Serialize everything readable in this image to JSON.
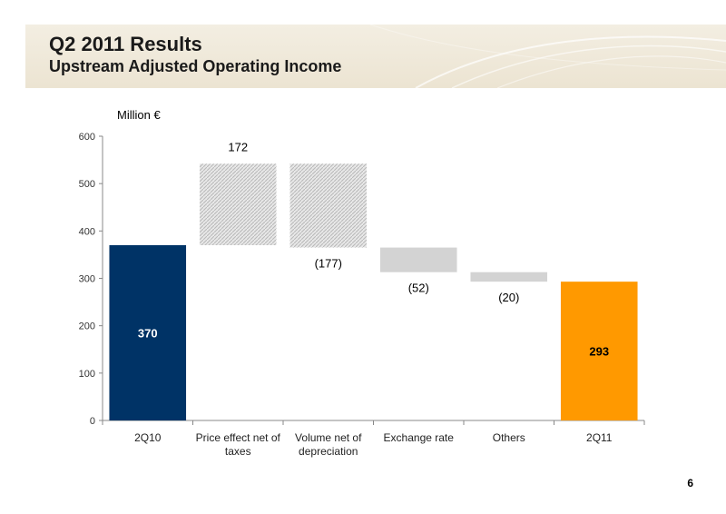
{
  "slide": {
    "title": "Q2 2011 Results",
    "subtitle": "Upstream Adjusted Operating Income",
    "unit_label": "Million €",
    "page_number": "6"
  },
  "colors": {
    "banner": "#eee7d6",
    "start_bar": "#003366",
    "end_bar": "#ff9900",
    "increase": "#b8b8b8",
    "decrease": "#d3d3d3",
    "axis": "#888888"
  },
  "chart_data": {
    "type": "bar",
    "subtype": "waterfall",
    "categories": [
      "2Q10",
      "Price effect net of taxes",
      "Volume net of depreciation",
      "Exchange rate",
      "Others",
      "2Q11"
    ],
    "category_lines": [
      [
        "2Q10"
      ],
      [
        "Price effect net of",
        "taxes"
      ],
      [
        "Volume net of",
        "depreciation"
      ],
      [
        "Exchange rate"
      ],
      [
        "Others"
      ],
      [
        "2Q11"
      ]
    ],
    "values": [
      370,
      172,
      -177,
      -52,
      -20,
      293
    ],
    "data_labels": [
      "370",
      "172",
      "(177)",
      "(52)",
      "(20)",
      "293"
    ],
    "bar_roles": [
      "total",
      "increase",
      "decrease",
      "decrease",
      "decrease",
      "total"
    ],
    "ylim": [
      0,
      600
    ],
    "yticks": [
      0,
      100,
      200,
      300,
      400,
      500,
      600
    ],
    "grid": false,
    "legend": "none",
    "xlabel": "",
    "ylabel": ""
  }
}
